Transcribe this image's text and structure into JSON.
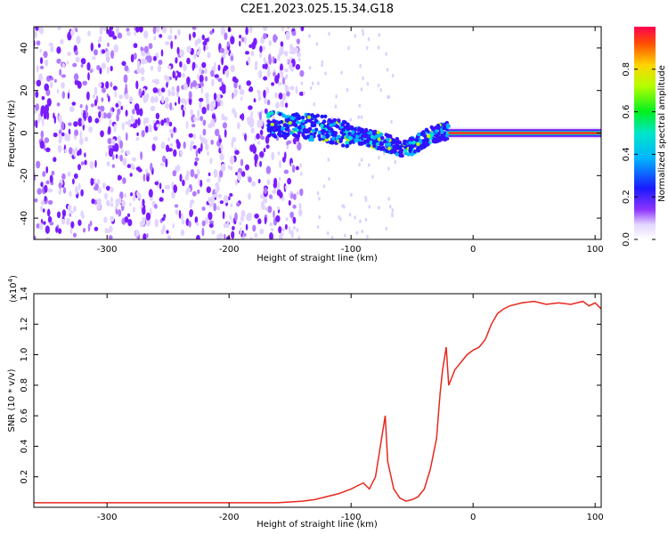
{
  "title": "C2E1.2023.025.15.34.G18",
  "colors": {
    "axis": "#000000",
    "snr_line": "#e8281e",
    "spectro_low": "#d9c8ff",
    "spectro_mid": "#7a1cff",
    "spectro_peak": "#ff0030"
  },
  "chart_data": [
    {
      "type": "heatmap",
      "title": "C2E1.2023.025.15.34.G18",
      "xlabel": "Height of straight line (km)",
      "ylabel": "Frequency (Hz)",
      "xlim": [
        -360,
        105
      ],
      "ylim": [
        -50,
        50
      ],
      "xticks": [
        -300,
        -200,
        -100,
        0,
        100
      ],
      "yticks": [
        -40,
        -20,
        0,
        20,
        40
      ],
      "colorbar": {
        "label": "Normalized spectral amplitude",
        "range": [
          0,
          1
        ],
        "ticks": [
          "0.0",
          "0.2",
          "0.4",
          "0.6",
          "0.8"
        ],
        "colormap": "white-purple-blue-cyan-green-yellow-red"
      },
      "features": {
        "noise_region_x": [
          -360,
          -160
        ],
        "signal_start_x": -168,
        "carrier_line_x": [
          -20,
          105
        ],
        "carrier_frequency": 0,
        "signal_trace": {
          "x": [
            -168,
            -140,
            -120,
            -100,
            -80,
            -60,
            -50,
            -40,
            -30,
            -20,
            0,
            100
          ],
          "y": [
            4,
            3,
            2,
            -1,
            -3,
            -7,
            -6,
            -3,
            0,
            1,
            0,
            0
          ]
        }
      }
    },
    {
      "type": "line",
      "xlabel": "Height of straight line (km)",
      "ylabel": "SNR (10 * v/v)",
      "scale_label_base": "(x10",
      "scale_label_exp": "4",
      "scale_label_end": ")",
      "xlim": [
        -360,
        105
      ],
      "ylim": [
        0,
        1.4
      ],
      "xticks": [
        -300,
        -200,
        -100,
        0,
        100
      ],
      "yticks": [
        "0.2",
        "0.4",
        "0.6",
        "0.8",
        "1.0",
        "1.2",
        "1.4"
      ],
      "series": [
        {
          "x": [
            -360,
            -300,
            -250,
            -200,
            -160,
            -140,
            -130,
            -120,
            -110,
            -100,
            -95,
            -90,
            -85,
            -80,
            -75,
            -72,
            -70,
            -65,
            -60,
            -55,
            -50,
            -45,
            -40,
            -35,
            -30,
            -27,
            -25,
            -22,
            -20,
            -15,
            -10,
            -5,
            0,
            5,
            10,
            15,
            20,
            25,
            30,
            40,
            50,
            60,
            70,
            80,
            90,
            95,
            100,
            105
          ],
          "y": [
            0.03,
            0.03,
            0.03,
            0.03,
            0.03,
            0.04,
            0.05,
            0.07,
            0.09,
            0.12,
            0.14,
            0.16,
            0.12,
            0.2,
            0.45,
            0.6,
            0.3,
            0.12,
            0.06,
            0.04,
            0.05,
            0.07,
            0.12,
            0.25,
            0.45,
            0.75,
            0.9,
            1.05,
            0.8,
            0.9,
            0.95,
            1.0,
            1.03,
            1.05,
            1.1,
            1.2,
            1.27,
            1.3,
            1.32,
            1.34,
            1.35,
            1.33,
            1.34,
            1.33,
            1.35,
            1.32,
            1.34,
            1.3
          ]
        }
      ]
    }
  ]
}
